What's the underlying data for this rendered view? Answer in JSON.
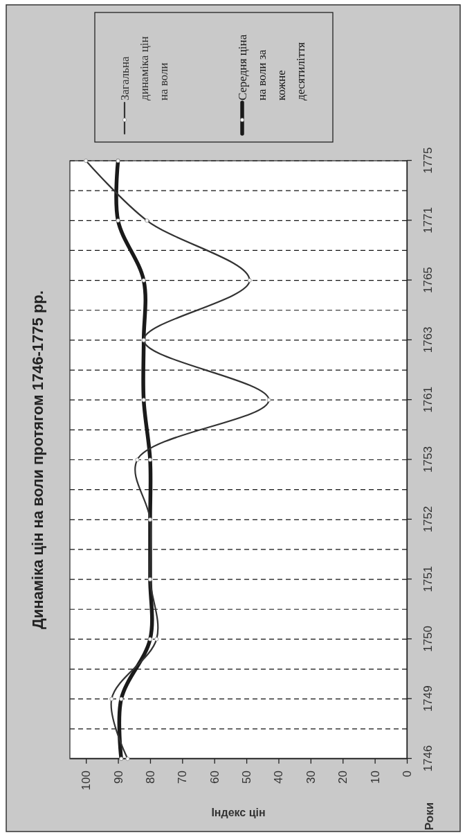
{
  "chart_data": {
    "type": "line",
    "orientation": "horizontal",
    "title": "Динаміка цін на воли протягом 1746-1775 рр.",
    "xlabel": "Індекс цін",
    "ylabel": "Роки",
    "categories": [
      "1775",
      "1771",
      "1765",
      "1763",
      "1761",
      "1753",
      "1752",
      "1751",
      "1750",
      "1749",
      "1746"
    ],
    "series": [
      {
        "name": "Загальна динаміка цін на воли",
        "color": "#333333",
        "values": [
          100,
          81,
          49,
          82,
          43,
          84,
          80,
          80,
          78,
          92,
          87
        ]
      },
      {
        "name": "Середня ціна на воли за кожне десятиліття",
        "color": "#1a1a1a",
        "values": [
          90,
          90,
          82,
          82,
          82,
          80,
          80,
          80,
          80,
          89,
          89
        ]
      }
    ],
    "xlim": [
      105,
      0
    ],
    "xticks": [
      100,
      90,
      80,
      70,
      60,
      50,
      40,
      30,
      20,
      10,
      0
    ],
    "grid": "y",
    "legend": "top",
    "marker": "circle",
    "line_style": "solid"
  }
}
